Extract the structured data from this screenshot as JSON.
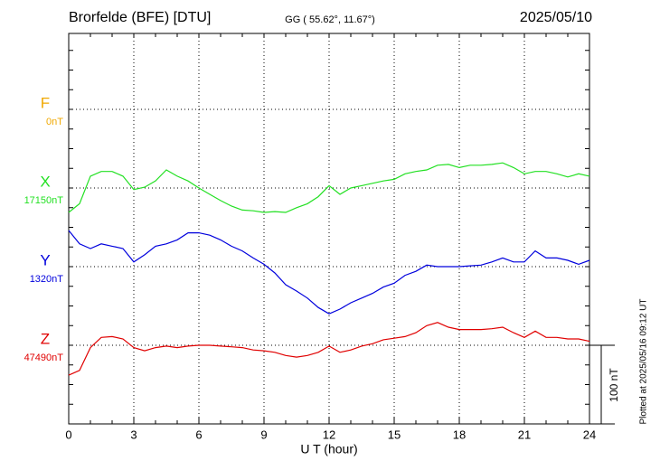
{
  "chart_data": {
    "type": "line",
    "title": "Brorfelde (BFE)  [DTU]",
    "subtitle": "GG ( 55.62°,  11.67°)",
    "date": "2025/05/10",
    "x_label": "U T (hour)",
    "note": "Plotted at 2025/05/16 09:12 UT",
    "scale_bar": {
      "value": 100,
      "label": "100 nT"
    },
    "xlim": [
      0,
      24
    ],
    "xticks": [
      0,
      3,
      6,
      9,
      12,
      15,
      18,
      21,
      24
    ],
    "grid": true,
    "x": [
      0,
      0.5,
      1,
      1.5,
      2,
      2.5,
      3,
      3.5,
      4,
      4.5,
      5,
      5.5,
      6,
      6.5,
      7,
      7.5,
      8,
      8.5,
      9,
      9.5,
      10,
      10.5,
      11,
      11.5,
      12,
      12.5,
      13,
      13.5,
      14,
      14.5,
      15,
      15.5,
      16,
      16.5,
      17,
      17.5,
      18,
      18.5,
      19,
      19.5,
      20,
      20.5,
      21,
      21.5,
      22,
      22.5,
      23,
      23.5,
      24
    ],
    "series": [
      {
        "name": "F",
        "color": "#f0a800",
        "baseline": {
          "value": 0,
          "label": "0nT"
        },
        "values": [
          null,
          null,
          null,
          null,
          null,
          null,
          null,
          null,
          null,
          null,
          null,
          null,
          null,
          null,
          null,
          null,
          null,
          null,
          null,
          null,
          null,
          null,
          null,
          null,
          null,
          null,
          null,
          null,
          null,
          null,
          null,
          null,
          null,
          null,
          null,
          null,
          null,
          null,
          null,
          null,
          null,
          null,
          null,
          null,
          null,
          null,
          null,
          null,
          null
        ]
      },
      {
        "name": "X",
        "color": "#22e022",
        "baseline": {
          "value": 17150,
          "label": "17150nT"
        },
        "values": [
          17119,
          17130,
          17165,
          17171,
          17171,
          17165,
          17148,
          17151,
          17159,
          17173,
          17165,
          17159,
          17150,
          17142,
          17134,
          17127,
          17122,
          17121,
          17119,
          17120,
          17119,
          17125,
          17130,
          17139,
          17153,
          17142,
          17150,
          17153,
          17156,
          17159,
          17161,
          17168,
          17171,
          17173,
          17179,
          17180,
          17176,
          17179,
          17179,
          17180,
          17182,
          17176,
          17168,
          17171,
          17171,
          17168,
          17164,
          17168,
          17165
        ]
      },
      {
        "name": "Y",
        "color": "#0000dd",
        "baseline": {
          "value": 1320,
          "label": "1320nT"
        },
        "values": [
          1366,
          1349,
          1343,
          1349,
          1346,
          1343,
          1326,
          1335,
          1346,
          1349,
          1354,
          1363,
          1363,
          1360,
          1354,
          1346,
          1340,
          1331,
          1323,
          1312,
          1297,
          1289,
          1280,
          1268,
          1260,
          1266,
          1274,
          1280,
          1286,
          1294,
          1299,
          1309,
          1314,
          1322,
          1320,
          1320,
          1320,
          1321,
          1322,
          1326,
          1331,
          1326,
          1326,
          1340,
          1331,
          1331,
          1328,
          1323,
          1328
        ]
      },
      {
        "name": "Z",
        "color": "#e00000",
        "baseline": {
          "value": 47490,
          "label": "47490nT"
        },
        "values": [
          47452,
          47458,
          47487,
          47500,
          47501,
          47498,
          47487,
          47483,
          47487,
          47489,
          47487,
          47489,
          47490,
          47490,
          47489,
          47488,
          47487,
          47484,
          47483,
          47481,
          47477,
          47475,
          47477,
          47481,
          47489,
          47481,
          47484,
          47489,
          47492,
          47497,
          47499,
          47501,
          47506,
          47515,
          47519,
          47513,
          47510,
          47510,
          47510,
          47511,
          47513,
          47506,
          47500,
          47508,
          47500,
          47500,
          47498,
          47498,
          47495
        ]
      }
    ]
  }
}
